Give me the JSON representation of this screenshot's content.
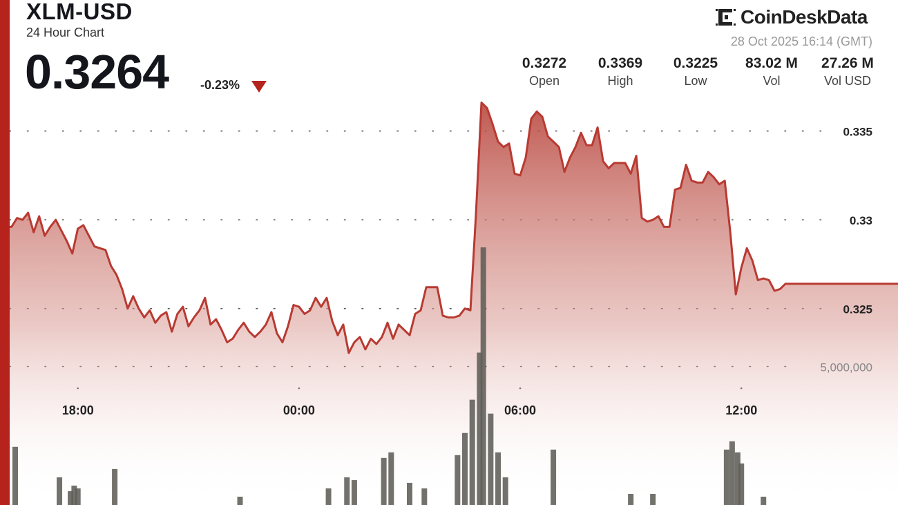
{
  "header": {
    "pair": "XLM-USD",
    "subtitle": "24 Hour Chart",
    "price": "0.3264",
    "change": "-0.23%",
    "change_icon": "down-triangle-icon",
    "brand": "CoinDeskData",
    "timestamp": "28 Oct 2025 16:14 (GMT)"
  },
  "stats": [
    {
      "value": "0.3272",
      "label": "Open"
    },
    {
      "value": "0.3369",
      "label": "High"
    },
    {
      "value": "0.3225",
      "label": "Low"
    },
    {
      "value": "83.02 M",
      "label": "Vol"
    },
    {
      "value": "27.26 M",
      "label": "Vol USD"
    }
  ],
  "colors": {
    "accent": "#b5231c",
    "line": "#b83a32",
    "volume_bar": "#5f5d58"
  },
  "chart_data": {
    "type": "area",
    "price_axis": {
      "ticks": [
        0.325,
        0.33,
        0.335
      ],
      "tick_labels": [
        "0.325",
        "0.33",
        "0.335"
      ],
      "range": [
        0.3202,
        0.3381
      ]
    },
    "volume_axis": {
      "ticks": [
        5000000
      ],
      "tick_labels": [
        "5,000,000"
      ],
      "range": [
        0,
        10000000
      ]
    },
    "x_axis": {
      "range_hours": [
        16.15,
        40.25
      ],
      "ticks": [
        18,
        24,
        30,
        36
      ],
      "tick_labels": [
        "18:00",
        "00:00",
        "06:00",
        "12:00"
      ]
    },
    "grid": "dotted horizontal",
    "price_series": [
      [
        16.2,
        0.3296
      ],
      [
        16.35,
        0.3301
      ],
      [
        16.5,
        0.33
      ],
      [
        16.65,
        0.3304
      ],
      [
        16.8,
        0.3293
      ],
      [
        16.95,
        0.3302
      ],
      [
        17.1,
        0.3291
      ],
      [
        17.25,
        0.3296
      ],
      [
        17.4,
        0.33
      ],
      [
        17.55,
        0.3294
      ],
      [
        17.7,
        0.3288
      ],
      [
        17.85,
        0.3281
      ],
      [
        18.0,
        0.3295
      ],
      [
        18.15,
        0.3297
      ],
      [
        18.3,
        0.3291
      ],
      [
        18.45,
        0.3285
      ],
      [
        18.6,
        0.3284
      ],
      [
        18.75,
        0.3283
      ],
      [
        18.9,
        0.3274
      ],
      [
        19.05,
        0.3269
      ],
      [
        19.2,
        0.3261
      ],
      [
        19.35,
        0.325
      ],
      [
        19.5,
        0.3257
      ],
      [
        19.65,
        0.325
      ],
      [
        19.8,
        0.3245
      ],
      [
        19.95,
        0.3249
      ],
      [
        20.1,
        0.3242
      ],
      [
        20.25,
        0.3246
      ],
      [
        20.4,
        0.3248
      ],
      [
        20.55,
        0.3237
      ],
      [
        20.7,
        0.3247
      ],
      [
        20.85,
        0.3251
      ],
      [
        21.0,
        0.324
      ],
      [
        21.15,
        0.3245
      ],
      [
        21.3,
        0.3249
      ],
      [
        21.45,
        0.3256
      ],
      [
        21.6,
        0.3241
      ],
      [
        21.75,
        0.3244
      ],
      [
        21.9,
        0.3238
      ],
      [
        22.05,
        0.3231
      ],
      [
        22.2,
        0.3233
      ],
      [
        22.35,
        0.3238
      ],
      [
        22.5,
        0.3242
      ],
      [
        22.65,
        0.3237
      ],
      [
        22.8,
        0.3234
      ],
      [
        22.95,
        0.3237
      ],
      [
        23.1,
        0.3241
      ],
      [
        23.25,
        0.3248
      ],
      [
        23.4,
        0.3236
      ],
      [
        23.55,
        0.3231
      ],
      [
        23.7,
        0.324
      ],
      [
        23.85,
        0.3252
      ],
      [
        24.0,
        0.3251
      ],
      [
        24.15,
        0.3247
      ],
      [
        24.3,
        0.3249
      ],
      [
        24.45,
        0.3256
      ],
      [
        24.6,
        0.3251
      ],
      [
        24.75,
        0.3256
      ],
      [
        24.9,
        0.3243
      ],
      [
        25.05,
        0.3235
      ],
      [
        25.2,
        0.3241
      ],
      [
        25.35,
        0.3225
      ],
      [
        25.5,
        0.3231
      ],
      [
        25.65,
        0.3234
      ],
      [
        25.8,
        0.3227
      ],
      [
        25.95,
        0.3233
      ],
      [
        26.1,
        0.323
      ],
      [
        26.25,
        0.3234
      ],
      [
        26.4,
        0.3242
      ],
      [
        26.55,
        0.3233
      ],
      [
        26.7,
        0.3241
      ],
      [
        26.85,
        0.3238
      ],
      [
        27.0,
        0.3235
      ],
      [
        27.15,
        0.3247
      ],
      [
        27.3,
        0.3249
      ],
      [
        27.45,
        0.3262
      ],
      [
        27.6,
        0.3262
      ],
      [
        27.75,
        0.3262
      ],
      [
        27.9,
        0.3246
      ],
      [
        28.05,
        0.3245
      ],
      [
        28.2,
        0.3245
      ],
      [
        28.35,
        0.3246
      ],
      [
        28.5,
        0.325
      ],
      [
        28.65,
        0.3249
      ],
      [
        28.8,
        0.3303
      ],
      [
        28.95,
        0.3366
      ],
      [
        29.1,
        0.3363
      ],
      [
        29.25,
        0.3354
      ],
      [
        29.4,
        0.3344
      ],
      [
        29.55,
        0.3341
      ],
      [
        29.7,
        0.3343
      ],
      [
        29.85,
        0.3326
      ],
      [
        30.0,
        0.3325
      ],
      [
        30.15,
        0.3335
      ],
      [
        30.3,
        0.3357
      ],
      [
        30.45,
        0.3361
      ],
      [
        30.6,
        0.3358
      ],
      [
        30.75,
        0.3347
      ],
      [
        30.9,
        0.3344
      ],
      [
        31.05,
        0.3341
      ],
      [
        31.2,
        0.3327
      ],
      [
        31.35,
        0.3335
      ],
      [
        31.5,
        0.3341
      ],
      [
        31.65,
        0.3349
      ],
      [
        31.8,
        0.3342
      ],
      [
        31.95,
        0.3342
      ],
      [
        32.1,
        0.3352
      ],
      [
        32.25,
        0.3333
      ],
      [
        32.4,
        0.3329
      ],
      [
        32.55,
        0.3332
      ],
      [
        32.7,
        0.3332
      ],
      [
        32.85,
        0.3332
      ],
      [
        33.0,
        0.3326
      ],
      [
        33.15,
        0.3336
      ],
      [
        33.3,
        0.3301
      ],
      [
        33.45,
        0.3299
      ],
      [
        33.6,
        0.33
      ],
      [
        33.75,
        0.3302
      ],
      [
        33.9,
        0.3296
      ],
      [
        34.05,
        0.3296
      ],
      [
        34.2,
        0.3317
      ],
      [
        34.35,
        0.3318
      ],
      [
        34.5,
        0.3331
      ],
      [
        34.65,
        0.3322
      ],
      [
        34.8,
        0.3321
      ],
      [
        34.95,
        0.3321
      ],
      [
        35.1,
        0.3327
      ],
      [
        35.25,
        0.3324
      ],
      [
        35.4,
        0.332
      ],
      [
        35.55,
        0.3322
      ],
      [
        35.7,
        0.3293
      ],
      [
        35.85,
        0.3258
      ],
      [
        36.0,
        0.3273
      ],
      [
        36.15,
        0.3284
      ],
      [
        36.3,
        0.3277
      ],
      [
        36.45,
        0.3266
      ],
      [
        36.6,
        0.3267
      ],
      [
        36.75,
        0.3266
      ],
      [
        36.9,
        0.326
      ],
      [
        37.05,
        0.3261
      ],
      [
        37.2,
        0.3264
      ]
    ],
    "volume_series": [
      [
        16.3,
        2100000
      ],
      [
        17.5,
        1000000
      ],
      [
        17.8,
        500000
      ],
      [
        17.9,
        700000
      ],
      [
        18.0,
        600000
      ],
      [
        19.0,
        1300000
      ],
      [
        22.4,
        300000
      ],
      [
        24.8,
        600000
      ],
      [
        25.3,
        1000000
      ],
      [
        25.5,
        900000
      ],
      [
        26.3,
        1700000
      ],
      [
        26.5,
        1900000
      ],
      [
        27.0,
        800000
      ],
      [
        27.4,
        600000
      ],
      [
        28.3,
        1800000
      ],
      [
        28.5,
        2600000
      ],
      [
        28.7,
        3800000
      ],
      [
        28.9,
        5500000
      ],
      [
        29.0,
        9300000
      ],
      [
        29.2,
        3300000
      ],
      [
        29.4,
        1900000
      ],
      [
        29.6,
        1000000
      ],
      [
        30.9,
        2000000
      ],
      [
        33.0,
        400000
      ],
      [
        33.6,
        400000
      ],
      [
        35.6,
        2000000
      ],
      [
        35.75,
        2300000
      ],
      [
        35.9,
        1900000
      ],
      [
        36.0,
        1500000
      ],
      [
        36.6,
        300000
      ]
    ]
  }
}
